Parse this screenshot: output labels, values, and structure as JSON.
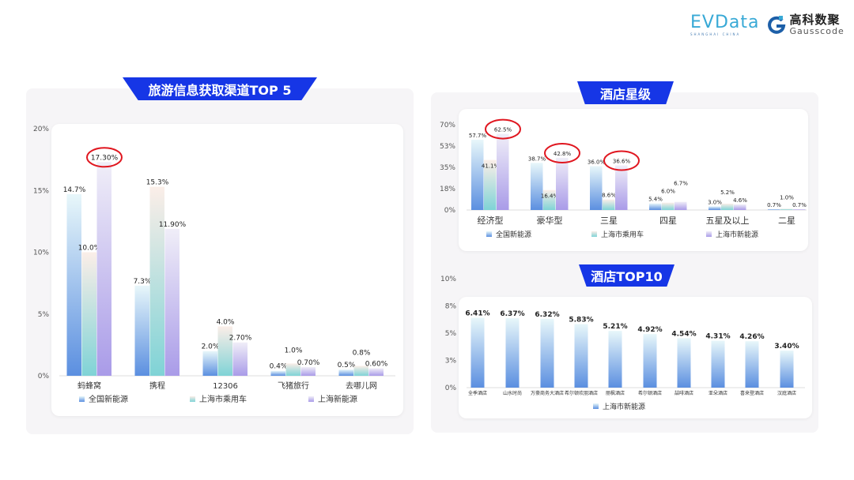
{
  "logos": {
    "evdata": "EVData",
    "evdata_sub": "SHANGHAI CHINA",
    "gauss_cn": "高科数聚",
    "gauss_en": "Gausscode"
  },
  "colors": {
    "banner": "#1636e6",
    "series1": "#5b8fe0",
    "series2": "#7fd3d6",
    "series3": "#a99be8",
    "highlight": "#e0161f"
  },
  "chart_data": [
    {
      "type": "bar",
      "title": "旅游信息获取渠道TOP 5",
      "ylim": [
        0,
        20
      ],
      "yticks": [
        "0%",
        "5%",
        "10%",
        "15%",
        "20%"
      ],
      "ytick_values": [
        0,
        5,
        10,
        15,
        20
      ],
      "categories": [
        "蚂蜂窝",
        "携程",
        "12306",
        "飞猪旅行",
        "去哪儿网"
      ],
      "series": [
        {
          "name": "全国新能源",
          "values": [
            14.7,
            7.3,
            2.0,
            0.4,
            0.5
          ],
          "labels": [
            "14.7%",
            "7.3%",
            "2.0%",
            "0.4%",
            "0.5%"
          ]
        },
        {
          "name": "上海市乘用车",
          "values": [
            10.0,
            15.3,
            4.0,
            1.0,
            0.8
          ],
          "labels": [
            "10.0%",
            "15.3%",
            "4.0%",
            "1.0%",
            "0.8%"
          ]
        },
        {
          "name": "上海新能源",
          "values": [
            17.3,
            11.9,
            2.7,
            0.7,
            0.6
          ],
          "labels": [
            "17.30%",
            "11.90%",
            "2.70%",
            "0.70%",
            "0.60%"
          ]
        }
      ],
      "highlighted": [
        [
          0,
          2
        ]
      ],
      "legend": "bottom"
    },
    {
      "type": "bar",
      "title": "酒店星级",
      "ylim": [
        0,
        70
      ],
      "yticks": [
        "0%",
        "18%",
        "35%",
        "53%",
        "70%"
      ],
      "ytick_values": [
        0,
        17.5,
        35,
        52.5,
        70
      ],
      "categories": [
        "经济型",
        "豪华型",
        "三星",
        "四星",
        "五星及以上",
        "二星"
      ],
      "series": [
        {
          "name": "全国新能源",
          "values": [
            57.7,
            38.7,
            36.0,
            5.4,
            3.0,
            0.7
          ],
          "labels": [
            "57.7%",
            "38.7%",
            "36.0%",
            "5.4%",
            "3.0%",
            "0.7%"
          ]
        },
        {
          "name": "上海市乘用车",
          "values": [
            41.1,
            16.4,
            8.6,
            6.0,
            5.2,
            1.0
          ],
          "labels": [
            "41.1%",
            "16.4%",
            "8.6%",
            "6.0%",
            "5.2%",
            "1.0%"
          ]
        },
        {
          "name": "上海市新能源",
          "values": [
            62.5,
            42.8,
            36.6,
            6.7,
            4.6,
            0.7
          ],
          "labels": [
            "62.5%",
            "42.8%",
            "36.6%",
            "6.7%",
            "4.6%",
            "0.7%"
          ]
        }
      ],
      "highlighted": [
        [
          0,
          2
        ],
        [
          1,
          2
        ],
        [
          2,
          2
        ]
      ],
      "legend": "bottom"
    },
    {
      "type": "bar",
      "title": "酒店TOP10",
      "ylim": [
        0,
        10
      ],
      "yticks": [
        "0%",
        "3%",
        "5%",
        "8%",
        "10%"
      ],
      "ytick_values": [
        0,
        2.5,
        5,
        7.5,
        10
      ],
      "categories": [
        "全季酒店",
        "山水时尚",
        "万豪商务大酒店",
        "希尔顿欢朋酒店",
        "丽枫酒店",
        "希尔顿酒店",
        "喆啡酒店",
        "亚朵酒店",
        "喜来登酒店",
        "汉庭酒店"
      ],
      "series": [
        {
          "name": "上海市新能源",
          "values": [
            6.41,
            6.37,
            6.32,
            5.83,
            5.21,
            4.92,
            4.54,
            4.31,
            4.26,
            3.4
          ],
          "labels": [
            "6.41%",
            "6.37%",
            "6.32%",
            "5.83%",
            "5.21%",
            "4.92%",
            "4.54%",
            "4.31%",
            "4.26%",
            "3.40%"
          ]
        }
      ],
      "legend": "bottom"
    }
  ]
}
